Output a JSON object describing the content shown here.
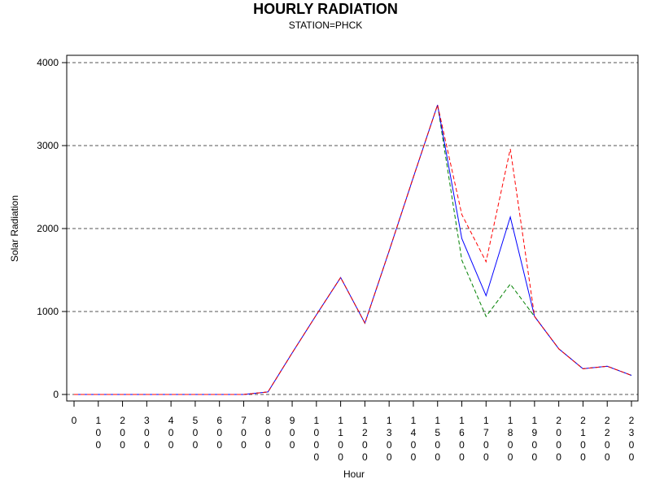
{
  "chart_data": {
    "type": "line",
    "title": "HOURLY RADIATION",
    "subtitle": "STATION=PHCK",
    "xlabel": "Hour",
    "ylabel": "Solar Radiation",
    "ylim": [
      0,
      4000
    ],
    "yticks": [
      0,
      1000,
      2000,
      3000,
      4000
    ],
    "y_gridlines": "dashed",
    "x": [
      0,
      100,
      200,
      300,
      400,
      500,
      600,
      700,
      800,
      900,
      1000,
      1100,
      1200,
      1300,
      1400,
      1500,
      1600,
      1700,
      1800,
      1900,
      2000,
      2100,
      2200,
      2300
    ],
    "x_tick_labels": [
      "0",
      "100",
      "200",
      "300",
      "400",
      "500",
      "600",
      "700",
      "800",
      "900",
      "1000",
      "1100",
      "1200",
      "1300",
      "1400",
      "1500",
      "1600",
      "1700",
      "1800",
      "1900",
      "2000",
      "2100",
      "2200",
      "2300"
    ],
    "series": [
      {
        "color": "#0000ff",
        "style": "solid",
        "values": [
          0,
          0,
          0,
          0,
          0,
          0,
          0,
          0,
          30,
          500,
          960,
          1410,
          860,
          1730,
          2620,
          3490,
          1880,
          1190,
          2140,
          940,
          550,
          310,
          340,
          230
        ]
      },
      {
        "color": "#ff0000",
        "style": "dashed",
        "values": [
          0,
          0,
          0,
          0,
          0,
          0,
          0,
          0,
          30,
          500,
          960,
          1410,
          860,
          1730,
          2620,
          3490,
          2170,
          1600,
          2960,
          940,
          550,
          310,
          340,
          230
        ]
      },
      {
        "color": "#008000",
        "style": "dashed",
        "values": [
          0,
          0,
          0,
          0,
          0,
          0,
          0,
          0,
          30,
          500,
          960,
          1410,
          860,
          1730,
          2620,
          3490,
          1620,
          940,
          1330,
          940,
          550,
          310,
          340,
          230
        ]
      }
    ]
  }
}
